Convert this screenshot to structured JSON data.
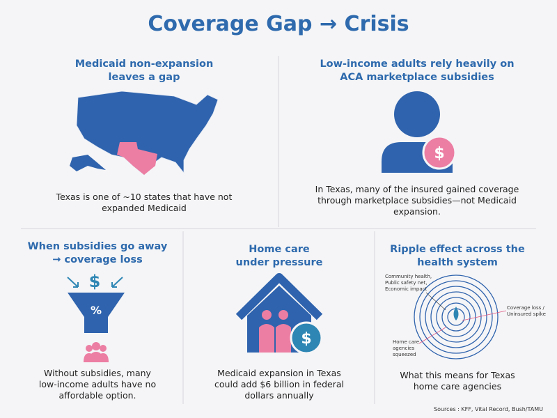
{
  "title": "Coverage Gap → Crisis",
  "panels": [
    {
      "heading": [
        "Medicaid non-expansion",
        "leaves a gap"
      ],
      "body": [
        "Texas is one of ~10 states that have not",
        "expanded Medicaid"
      ]
    },
    {
      "heading": [
        "Low-income adults rely heavily on",
        "ACA marketplace subsidies"
      ],
      "icon_text": "$",
      "body": [
        "In Texas, many of the insured gained coverage",
        "through marketplace subsidies—not Medicaid",
        "expansion."
      ]
    },
    {
      "heading": [
        "When subsidies go away",
        "→ coverage loss"
      ],
      "icon_text": [
        "$",
        "%"
      ],
      "body": [
        "Without subsidies, many",
        "low-income adults have no",
        "affordable option."
      ]
    },
    {
      "heading": [
        "Home care",
        "under pressure"
      ],
      "icon_text": "$",
      "body": [
        "Medicaid expansion in Texas",
        "could add $6 billion in federal",
        "dollars annually"
      ]
    },
    {
      "heading": [
        "Ripple effect across the",
        "health system"
      ],
      "annotations": [
        [
          "Community health,",
          "Public safety net,",
          "Economic impact"
        ],
        [
          "Coverage loss /",
          "Uninsured spike"
        ],
        [
          "Home care",
          "agencies",
          "squeezed"
        ]
      ],
      "body": [
        "What this means for Texas",
        "home care agencies"
      ]
    }
  ],
  "sources": "Sources : KFF, Vital Record, Bush/TAMU"
}
